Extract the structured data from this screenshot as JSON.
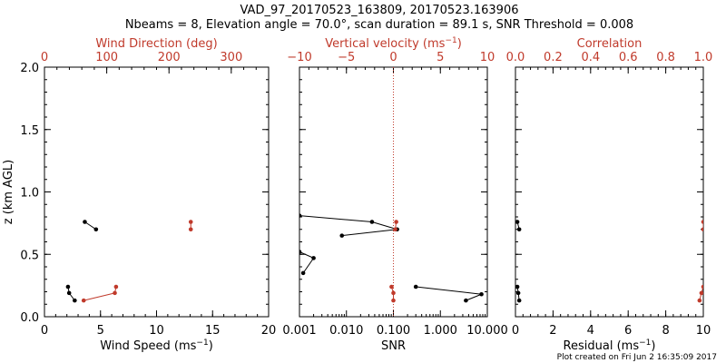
{
  "figure": {
    "title_line1": "VAD_97_20170523_163809, 20170523.163906",
    "title_line2": "Nbeams = 8, Elevation angle = 70.0°, scan duration = 89.1 s, SNR Threshold = 0.008",
    "footer": "Plot created on Fri Jun  2 16:35:09 2017",
    "colors": {
      "black": "#000000",
      "red": "#c03a2b"
    }
  },
  "chart_data": [
    {
      "type": "line",
      "name": "wind-panel",
      "ylabel": "z (km AGL)",
      "ylim": [
        0.0,
        2.0
      ],
      "yticks": [
        0.0,
        0.5,
        1.0,
        1.5,
        2.0
      ],
      "ytick_labels": [
        "0.0",
        "0.5",
        "1.0",
        "1.5",
        "2.0"
      ],
      "bottom_axis": {
        "label": "Wind Speed",
        "unit": "(ms",
        "unit_exp": "−1",
        "unit_close": ")",
        "scale": "linear",
        "lim": [
          0,
          20
        ],
        "ticks": [
          0,
          5,
          10,
          15,
          20
        ],
        "tick_labels": [
          "0",
          "5",
          "10",
          "15",
          "20"
        ]
      },
      "top_axis": {
        "label": "Wind Direction (deg)",
        "scale": "linear",
        "lim": [
          0,
          360
        ],
        "ticks": [
          0,
          100,
          200,
          300
        ],
        "tick_labels": [
          "0",
          "100",
          "200",
          "300"
        ]
      },
      "series": [
        {
          "name": "Wind Speed",
          "axis": "bottom",
          "color": "#000000",
          "points": [
            [
              2.1,
              0.24
            ],
            [
              2.2,
              0.19
            ],
            [
              2.7,
              0.13
            ],
            [
              3.6,
              0.76
            ],
            [
              4.6,
              0.7
            ]
          ],
          "segments": [
            [
              [
                2.1,
                0.24
              ],
              [
                2.2,
                0.19
              ]
            ],
            [
              [
                2.2,
                0.19
              ],
              [
                2.7,
                0.13
              ]
            ],
            [
              [
                3.6,
                0.76
              ],
              [
                4.6,
                0.7
              ]
            ]
          ]
        },
        {
          "name": "Wind Direction",
          "axis": "top",
          "color": "#c03a2b",
          "points": [
            [
              115,
              0.24
            ],
            [
              113,
              0.19
            ],
            [
              63,
              0.13
            ],
            [
              235,
              0.76
            ],
            [
              235,
              0.7
            ]
          ],
          "segments": [
            [
              [
                115,
                0.24
              ],
              [
                113,
                0.19
              ]
            ],
            [
              [
                113,
                0.19
              ],
              [
                63,
                0.13
              ]
            ],
            [
              [
                235,
                0.76
              ],
              [
                235,
                0.7
              ]
            ]
          ]
        }
      ]
    },
    {
      "type": "line",
      "name": "velocity-panel",
      "ylim": [
        0.0,
        2.0
      ],
      "yticks": [
        0.0,
        0.5,
        1.0,
        1.5,
        2.0
      ],
      "bottom_axis": {
        "label": "SNR",
        "scale": "log",
        "lim": [
          0.001,
          10
        ],
        "ticks": [
          0.001,
          0.01,
          0.1,
          1,
          10
        ],
        "tick_labels": [
          "0.001",
          "0.010",
          "0.100",
          "1.000",
          "10.000"
        ]
      },
      "top_axis": {
        "label": "Vertical velocity",
        "unit": "(ms",
        "unit_exp": "−1",
        "unit_close": ")",
        "scale": "linear",
        "lim": [
          -10,
          10
        ],
        "ticks": [
          -10,
          -5,
          0,
          5,
          10
        ],
        "tick_labels": [
          "−10",
          "−5",
          "0",
          "5",
          "10"
        ],
        "zero_line": 0
      },
      "series": [
        {
          "name": "SNR",
          "axis": "bottom",
          "color": "#000000",
          "points": [
            [
              0.0012,
              0.35
            ],
            [
              0.002,
              0.47
            ],
            [
              0.001,
              0.52
            ],
            [
              0.008,
              0.65
            ],
            [
              0.12,
              0.7
            ],
            [
              0.035,
              0.76
            ],
            [
              0.001,
              0.81
            ],
            [
              0.3,
              0.24
            ],
            [
              7.5,
              0.18
            ],
            [
              3.5,
              0.13
            ]
          ],
          "segments": [
            [
              [
                0.0012,
                0.35
              ],
              [
                0.002,
                0.47
              ]
            ],
            [
              [
                0.002,
                0.47
              ],
              [
                0.001,
                0.52
              ]
            ],
            [
              [
                0.008,
                0.65
              ],
              [
                0.12,
                0.7
              ]
            ],
            [
              [
                0.12,
                0.7
              ],
              [
                0.035,
                0.76
              ]
            ],
            [
              [
                0.035,
                0.76
              ],
              [
                0.001,
                0.81
              ]
            ],
            [
              [
                0.3,
                0.24
              ],
              [
                7.5,
                0.18
              ]
            ],
            [
              [
                7.5,
                0.18
              ],
              [
                3.5,
                0.13
              ]
            ]
          ]
        },
        {
          "name": "Vertical velocity",
          "axis": "top",
          "color": "#c03a2b",
          "points": [
            [
              0.3,
              0.76
            ],
            [
              0.2,
              0.7
            ],
            [
              -0.2,
              0.24
            ],
            [
              0.0,
              0.19
            ],
            [
              0.0,
              0.13
            ]
          ],
          "segments": [
            [
              [
                0.3,
                0.76
              ],
              [
                0.2,
                0.7
              ]
            ],
            [
              [
                -0.2,
                0.24
              ],
              [
                0.0,
                0.19
              ]
            ],
            [
              [
                0.0,
                0.19
              ],
              [
                0.0,
                0.13
              ]
            ]
          ]
        }
      ]
    },
    {
      "type": "line",
      "name": "correlation-panel",
      "ylim": [
        0.0,
        2.0
      ],
      "yticks": [
        0.0,
        0.5,
        1.0,
        1.5,
        2.0
      ],
      "bottom_axis": {
        "label": "Residual",
        "unit": "(ms",
        "unit_exp": "−1",
        "unit_close": ")",
        "scale": "linear",
        "lim": [
          0,
          10
        ],
        "ticks": [
          0,
          2,
          4,
          6,
          8,
          10
        ],
        "tick_labels": [
          "0",
          "2",
          "4",
          "6",
          "8",
          "10"
        ]
      },
      "top_axis": {
        "label": "Correlation",
        "scale": "linear",
        "lim": [
          0.0,
          1.0
        ],
        "ticks": [
          0.0,
          0.2,
          0.4,
          0.6,
          0.8,
          1.0
        ],
        "tick_labels": [
          "0.0",
          "0.2",
          "0.4",
          "0.6",
          "0.8",
          "1.0"
        ]
      },
      "series": [
        {
          "name": "Residual",
          "axis": "bottom",
          "color": "#000000",
          "points": [
            [
              0.1,
              0.76
            ],
            [
              0.2,
              0.7
            ],
            [
              0.1,
              0.24
            ],
            [
              0.15,
              0.19
            ],
            [
              0.2,
              0.13
            ]
          ],
          "segments": [
            [
              [
                0.1,
                0.76
              ],
              [
                0.2,
                0.7
              ]
            ],
            [
              [
                0.1,
                0.24
              ],
              [
                0.15,
                0.19
              ]
            ],
            [
              [
                0.15,
                0.19
              ],
              [
                0.2,
                0.13
              ]
            ]
          ]
        },
        {
          "name": "Correlation",
          "axis": "top",
          "color": "#c03a2b",
          "points": [
            [
              1.0,
              0.76
            ],
            [
              1.0,
              0.7
            ],
            [
              1.0,
              0.24
            ],
            [
              0.99,
              0.19
            ],
            [
              0.98,
              0.13
            ]
          ],
          "segments": [
            [
              [
                1.0,
                0.76
              ],
              [
                1.0,
                0.7
              ]
            ],
            [
              [
                1.0,
                0.24
              ],
              [
                0.99,
                0.19
              ]
            ],
            [
              [
                0.99,
                0.19
              ],
              [
                0.98,
                0.13
              ]
            ]
          ]
        }
      ]
    }
  ]
}
